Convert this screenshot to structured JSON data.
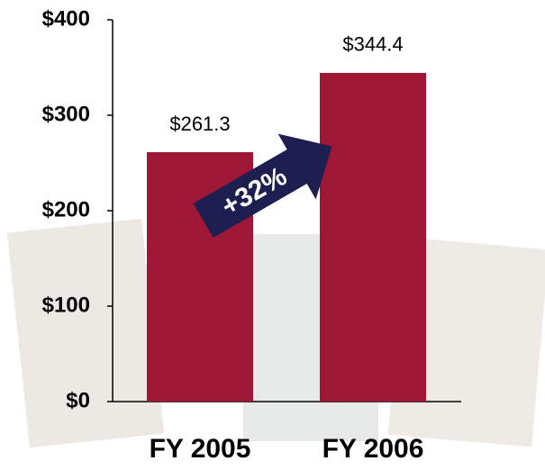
{
  "chart_data": {
    "type": "bar",
    "categories": [
      "FY 2005",
      "FY 2006"
    ],
    "values": [
      261.3,
      344.4
    ],
    "value_labels": [
      "$261.3",
      "$344.4"
    ],
    "color": "#9e1836",
    "annotation": "+32%",
    "ylim": [
      0,
      400
    ],
    "yticks": [
      {
        "value": 0,
        "label": "$0"
      },
      {
        "value": 100,
        "label": "$100"
      },
      {
        "value": 200,
        "label": "$200"
      },
      {
        "value": 300,
        "label": "$300"
      },
      {
        "value": 400,
        "label": "$400"
      }
    ]
  }
}
